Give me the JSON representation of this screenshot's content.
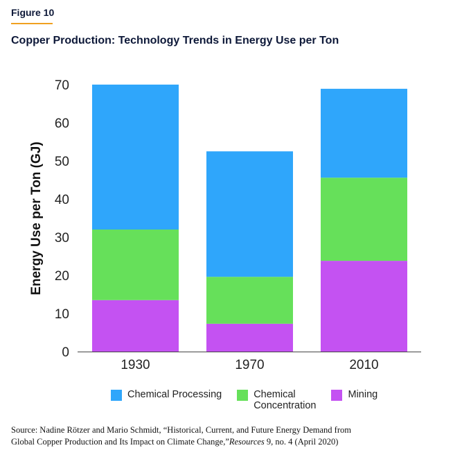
{
  "figure_label": "Figure 10",
  "chart_data": {
    "type": "bar",
    "stacked": true,
    "title": "Copper Production: Technology Trends in Energy Use per Ton",
    "xlabel": "",
    "ylabel": "Energy Use per Ton (GJ)",
    "ylim": [
      0,
      70
    ],
    "yticks": [
      0,
      10,
      20,
      30,
      40,
      50,
      60,
      70
    ],
    "categories": [
      "1930",
      "1970",
      "2010"
    ],
    "series": [
      {
        "name": "Mining",
        "color": "#c452f2",
        "values": [
          13.5,
          7.3,
          23.8
        ]
      },
      {
        "name": "Chemical Concentration",
        "color": "#66e05a",
        "values": [
          18.5,
          12.3,
          21.8
        ]
      },
      {
        "name": "Chemical Processing",
        "color": "#2fa6fb",
        "values": [
          38.0,
          32.9,
          23.3
        ]
      }
    ],
    "legend": {
      "position": "bottom",
      "items": [
        "Chemical Processing",
        "Chemical",
        "Concentration",
        "Mining"
      ]
    }
  },
  "source": {
    "line1": "Source: Nadine Rötzer and Mario Schmidt, “Historical, Current, and Future Energy Demand from",
    "line2a": "Global Copper Production and Its Impact on Climate Change,”",
    "journal": "Resources",
    "line2b": " 9, no. 4 (April 2020)"
  }
}
